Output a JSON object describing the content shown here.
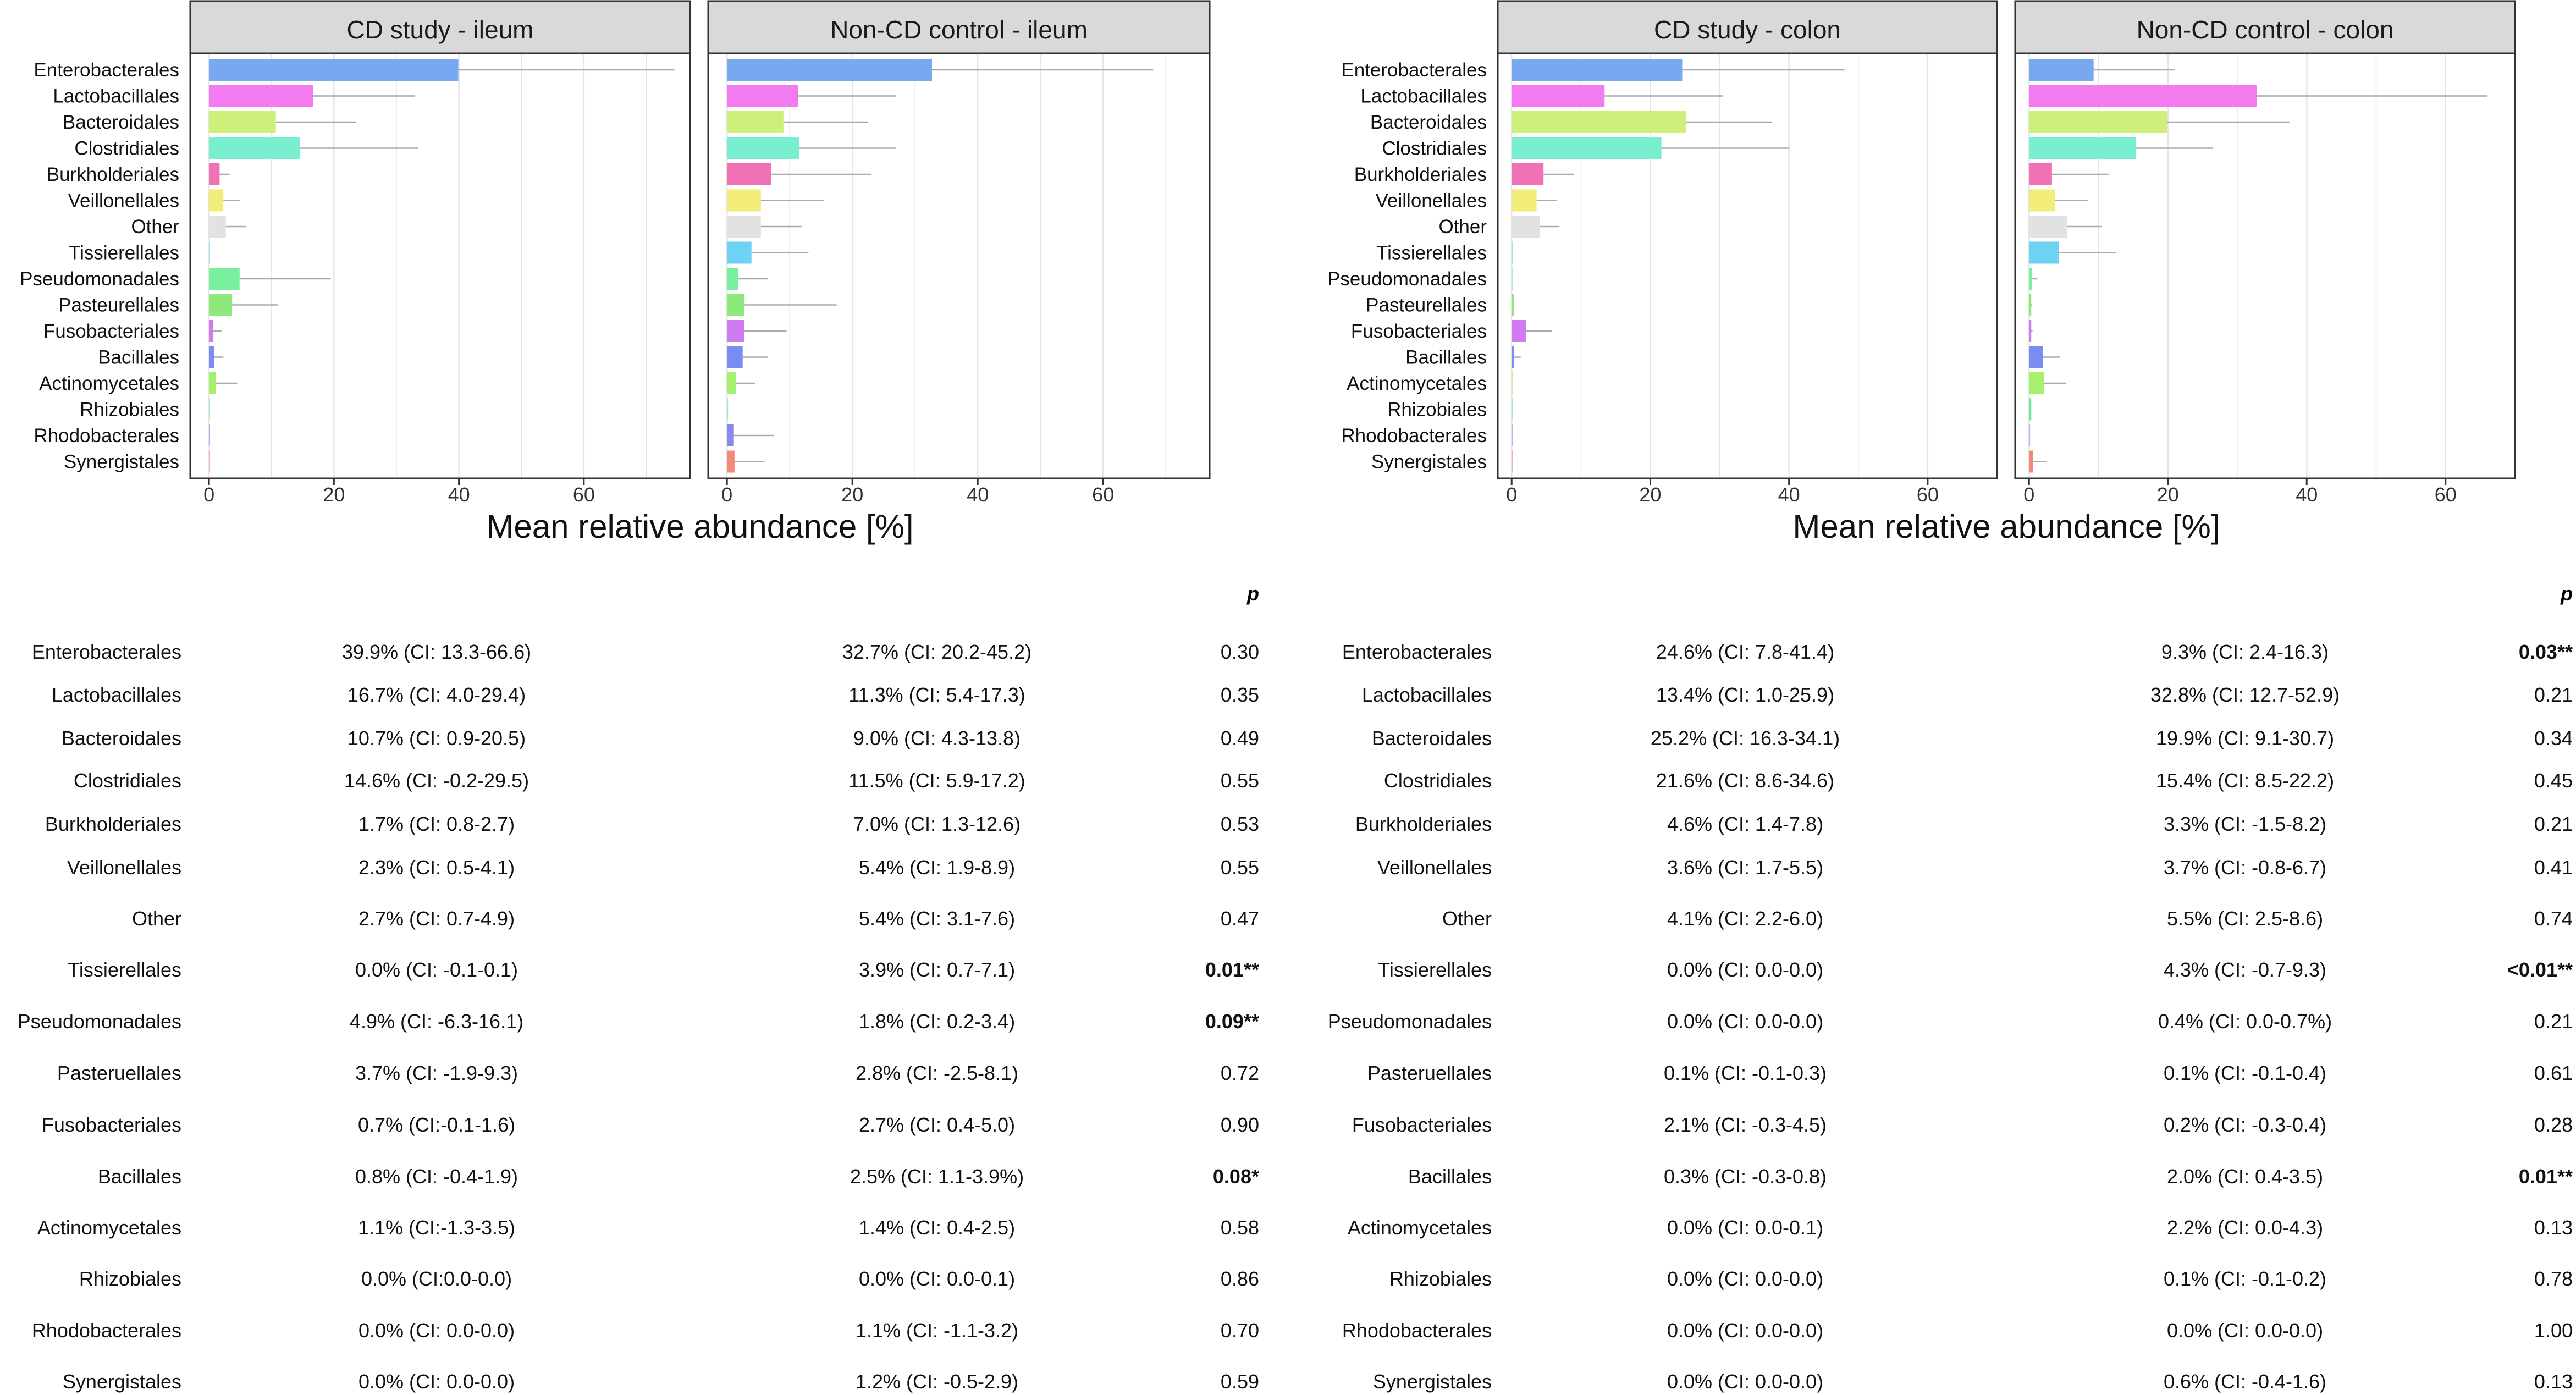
{
  "colors": {
    "Enterobacterales": "#78A9F0",
    "Lactobacillales": "#F27BF0",
    "Bacteroidales": "#CCF07A",
    "Clostridiales": "#79EFD0",
    "Burkholderiales": "#F072B4",
    "Veillonellales": "#F2EC78",
    "Other": "#E2E2E2",
    "Tissierellales": "#6ED3F2",
    "Pseudomonadales": "#78F0A0",
    "Pasteurellales": "#8DEA7A",
    "Fusobacteriales": "#D07CF0",
    "Bacillales": "#7C8DF2",
    "Actinomycetales": "#A6F070",
    "Rhizobiales": "#6FE7A0",
    "Rhodobacterales": "#8A8AEA",
    "Synergistales": "#F28A78",
    "panel_header_bg": "#D9D9D9",
    "error_bar": "#AAAAAA",
    "grid": "#E5E5E5"
  },
  "chart_data": [
    {
      "type": "bar",
      "orientation": "horizontal",
      "title": "CD study - ileum",
      "categories": [
        "Enterobacterales",
        "Lactobacillales",
        "Bacteroidales",
        "Clostridiales",
        "Burkholderiales",
        "Veillonellales",
        "Other",
        "Tissierellales",
        "Pseudomonadales",
        "Pasteurellales",
        "Fusobacteriales",
        "Bacillales",
        "Actinomycetales",
        "Rhizobiales",
        "Rhodobacterales",
        "Synergistales"
      ],
      "values": [
        39.9,
        16.7,
        10.7,
        14.6,
        1.7,
        2.3,
        2.7,
        0.0,
        4.9,
        3.7,
        0.7,
        0.8,
        1.1,
        0.0,
        0.0,
        0.0
      ],
      "err_high": [
        74.5,
        33.0,
        23.5,
        33.5,
        3.3,
        4.9,
        5.9,
        0.1,
        19.5,
        11.0,
        2.0,
        2.3,
        4.5,
        0.0,
        0.0,
        0.0
      ],
      "xlim": [
        -3,
        77
      ],
      "xticks": [
        0,
        20,
        40,
        60
      ],
      "xlabel": "Mean relative abundance [%]"
    },
    {
      "type": "bar",
      "orientation": "horizontal",
      "title": "Non-CD control - ileum",
      "categories": [
        "Enterobacterales",
        "Lactobacillales",
        "Bacteroidales",
        "Clostridiales",
        "Burkholderiales",
        "Veillonellales",
        "Other",
        "Tissierellales",
        "Pseudomonadales",
        "Pasteurellales",
        "Fusobacteriales",
        "Bacillales",
        "Actinomycetales",
        "Rhizobiales",
        "Rhodobacterales",
        "Synergistales"
      ],
      "values": [
        32.7,
        11.3,
        9.0,
        11.5,
        7.0,
        5.4,
        5.4,
        3.9,
        1.8,
        2.8,
        2.7,
        2.5,
        1.4,
        0.0,
        1.1,
        1.2
      ],
      "err_high": [
        68.0,
        27.0,
        22.5,
        27.0,
        23.0,
        15.5,
        12.0,
        13.0,
        6.5,
        17.5,
        9.5,
        6.5,
        4.5,
        0.2,
        7.5,
        6.0
      ],
      "xlim": [
        -3,
        77
      ],
      "xticks": [
        0,
        20,
        40,
        60
      ],
      "xlabel": "Mean relative abundance [%]"
    },
    {
      "type": "bar",
      "orientation": "horizontal",
      "title": "CD study - colon",
      "categories": [
        "Enterobacterales",
        "Lactobacillales",
        "Bacteroidales",
        "Clostridiales",
        "Burkholderiales",
        "Veillonellales",
        "Other",
        "Tissierellales",
        "Pseudomonadales",
        "Pasteurellales",
        "Fusobacteriales",
        "Bacillales",
        "Actinomycetales",
        "Rhizobiales",
        "Rhodobacterales",
        "Synergistales"
      ],
      "values": [
        24.6,
        13.4,
        25.2,
        21.6,
        4.6,
        3.6,
        4.1,
        0.0,
        0.0,
        0.1,
        2.1,
        0.3,
        0.0,
        0.0,
        0.0,
        0.0
      ],
      "err_high": [
        48.0,
        30.5,
        37.5,
        40.0,
        9.0,
        6.5,
        6.9,
        0.0,
        0.0,
        0.3,
        5.8,
        1.3,
        0.1,
        0.0,
        0.0,
        0.0
      ],
      "xlim": [
        -2,
        70
      ],
      "xticks": [
        0,
        20,
        40,
        60
      ],
      "xlabel": "Mean relative abundance [%]"
    },
    {
      "type": "bar",
      "orientation": "horizontal",
      "title": "Non-CD control - colon",
      "categories": [
        "Enterobacterales",
        "Lactobacillales",
        "Bacteroidales",
        "Clostridiales",
        "Burkholderiales",
        "Veillonellales",
        "Other",
        "Tissierellales",
        "Pseudomonadales",
        "Pasteurellales",
        "Fusobacteriales",
        "Bacillales",
        "Actinomycetales",
        "Rhizobiales",
        "Rhodobacterales",
        "Synergistales"
      ],
      "values": [
        9.3,
        32.8,
        19.9,
        15.4,
        3.3,
        3.7,
        5.5,
        4.3,
        0.4,
        0.1,
        0.2,
        2.0,
        2.2,
        0.1,
        0.0,
        0.6
      ],
      "err_high": [
        21.0,
        66.0,
        37.5,
        26.5,
        11.5,
        8.5,
        10.5,
        12.5,
        1.2,
        0.4,
        0.5,
        4.5,
        5.3,
        0.3,
        0.0,
        2.5
      ],
      "xlim": [
        -2,
        70
      ],
      "xticks": [
        0,
        20,
        40,
        60
      ],
      "xlabel": "Mean relative abundance [%]"
    }
  ],
  "tables": {
    "p_header": "p",
    "left": [
      {
        "taxon": "Enterobacterales",
        "cd": "39.9% (CI: 13.3-66.6)",
        "ctrl": "32.7% (CI: 20.2-45.2)",
        "p": "0.30",
        "bold": false
      },
      {
        "taxon": "Lactobacillales",
        "cd": "16.7% (CI: 4.0-29.4)",
        "ctrl": "11.3% (CI: 5.4-17.3)",
        "p": "0.35",
        "bold": false
      },
      {
        "taxon": "Bacteroidales",
        "cd": "10.7% (CI: 0.9-20.5)",
        "ctrl": "9.0% (CI: 4.3-13.8)",
        "p": "0.49",
        "bold": false
      },
      {
        "taxon": "Clostridiales",
        "cd": "14.6% (CI: -0.2-29.5)",
        "ctrl": "11.5% (CI: 5.9-17.2)",
        "p": "0.55",
        "bold": false
      },
      {
        "taxon": "Burkholderiales",
        "cd": "1.7% (CI: 0.8-2.7)",
        "ctrl": "7.0% (CI: 1.3-12.6)",
        "p": "0.53",
        "bold": false
      },
      {
        "taxon": "Veillonellales",
        "cd": "2.3% (CI: 0.5-4.1)",
        "ctrl": "5.4% (CI: 1.9-8.9)",
        "p": "0.55",
        "bold": false
      },
      {
        "taxon": "Other",
        "cd": "2.7% (CI: 0.7-4.9)",
        "ctrl": "5.4% (CI: 3.1-7.6)",
        "p": "0.47",
        "bold": false
      },
      {
        "taxon": "Tissierellales",
        "cd": "0.0% (CI: -0.1-0.1)",
        "ctrl": "3.9% (CI: 0.7-7.1)",
        "p": "0.01",
        "stars": "**",
        "bold": true
      },
      {
        "taxon": "Pseudomonadales",
        "cd": "4.9% (CI: -6.3-16.1)",
        "ctrl": "1.8% (CI: 0.2-3.4)",
        "p": "0.09",
        "stars": "**",
        "bold": true
      },
      {
        "taxon": "Pasteruellales",
        "cd": "3.7% (CI: -1.9-9.3)",
        "ctrl": "2.8% (CI: -2.5-8.1)",
        "p": "0.72",
        "bold": false
      },
      {
        "taxon": "Fusobacteriales",
        "cd": "0.7% (CI:-0.1-1.6)",
        "ctrl": "2.7% (CI: 0.4-5.0)",
        "p": "0.90",
        "bold": false
      },
      {
        "taxon": "Bacillales",
        "cd": "0.8% (CI: -0.4-1.9)",
        "ctrl": "2.5% (CI: 1.1-3.9%)",
        "p": "0.08",
        "stars": "*",
        "bold": true
      },
      {
        "taxon": "Actinomycetales",
        "cd": "1.1% (CI:-1.3-3.5)",
        "ctrl": "1.4% (CI: 0.4-2.5)",
        "p": "0.58",
        "bold": false
      },
      {
        "taxon": "Rhizobiales",
        "cd": "0.0% (CI:0.0-0.0)",
        "ctrl": "0.0% (CI: 0.0-0.1)",
        "p": "0.86",
        "bold": false
      },
      {
        "taxon": "Rhodobacterales",
        "cd": "0.0% (CI: 0.0-0.0)",
        "ctrl": "1.1% (CI: -1.1-3.2)",
        "p": "0.70",
        "bold": false
      },
      {
        "taxon": "Synergistales",
        "cd": "0.0% (CI: 0.0-0.0)",
        "ctrl": "1.2% (CI: -0.5-2.9)",
        "p": "0.59",
        "bold": false
      }
    ],
    "right": [
      {
        "taxon": "Enterobacterales",
        "cd": "24.6% (CI: 7.8-41.4)",
        "ctrl": "9.3% (CI: 2.4-16.3)",
        "p": "0.03",
        "stars": "**",
        "bold": true
      },
      {
        "taxon": "Lactobacillales",
        "cd": "13.4% (CI: 1.0-25.9)",
        "ctrl": "32.8% (CI: 12.7-52.9)",
        "p": "0.21",
        "bold": false
      },
      {
        "taxon": "Bacteroidales",
        "cd": "25.2% (CI: 16.3-34.1)",
        "ctrl": "19.9% (CI: 9.1-30.7)",
        "p": "0.34",
        "bold": false
      },
      {
        "taxon": "Clostridiales",
        "cd": "21.6% (CI: 8.6-34.6)",
        "ctrl": "15.4% (CI: 8.5-22.2)",
        "p": "0.45",
        "bold": false
      },
      {
        "taxon": "Burkholderiales",
        "cd": "4.6% (CI: 1.4-7.8)",
        "ctrl": "3.3% (CI: -1.5-8.2)",
        "p": "0.21",
        "bold": false
      },
      {
        "taxon": "Veillonellales",
        "cd": "3.6% (CI: 1.7-5.5)",
        "ctrl": "3.7% (CI: -0.8-6.7)",
        "p": "0.41",
        "bold": false
      },
      {
        "taxon": "Other",
        "cd": "4.1% (CI: 2.2-6.0)",
        "ctrl": "5.5% (CI: 2.5-8.6)",
        "p": "0.74",
        "bold": false
      },
      {
        "taxon": "Tissierellales",
        "cd": "0.0% (CI: 0.0-0.0)",
        "ctrl": "4.3% (CI: -0.7-9.3)",
        "p": "<0.01",
        "stars": "**",
        "bold": true
      },
      {
        "taxon": "Pseudomonadales",
        "cd": "0.0% (CI: 0.0-0.0)",
        "ctrl": "0.4% (CI: 0.0-0.7%)",
        "p": "0.21",
        "bold": false
      },
      {
        "taxon": "Pasteruellales",
        "cd": "0.1% (CI: -0.1-0.3)",
        "ctrl": "0.1% (CI: -0.1-0.4)",
        "p": "0.61",
        "bold": false
      },
      {
        "taxon": "Fusobacteriales",
        "cd": "2.1% (CI: -0.3-4.5)",
        "ctrl": "0.2% (CI: -0.3-0.4)",
        "p": "0.28",
        "bold": false
      },
      {
        "taxon": "Bacillales",
        "cd": "0.3% (CI: -0.3-0.8)",
        "ctrl": "2.0% (CI: 0.4-3.5)",
        "p": "0.01",
        "stars": "**",
        "bold": true
      },
      {
        "taxon": "Actinomycetales",
        "cd": "0.0% (CI: 0.0-0.1)",
        "ctrl": "2.2% (CI: 0.0-4.3)",
        "p": "0.13",
        "bold": false
      },
      {
        "taxon": "Rhizobiales",
        "cd": "0.0% (CI: 0.0-0.0)",
        "ctrl": "0.1% (CI: -0.1-0.2)",
        "p": "0.78",
        "bold": false
      },
      {
        "taxon": "Rhodobacterales",
        "cd": "0.0% (CI: 0.0-0.0)",
        "ctrl": "0.0% (CI: 0.0-0.0)",
        "p": "1.00",
        "bold": false
      },
      {
        "taxon": "Synergistales",
        "cd": "0.0% (CI: 0.0-0.0)",
        "ctrl": "0.6% (CI: -0.4-1.6)",
        "p": "0.13",
        "bold": false
      }
    ]
  }
}
